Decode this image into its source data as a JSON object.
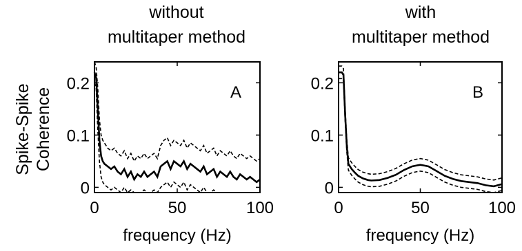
{
  "titles": {
    "a_line1": "without",
    "a_line2": "multitaper method",
    "b_line1": "with",
    "b_line2": "multitaper method"
  },
  "ylabel": {
    "line1": "Spike-Spike",
    "line2": "Coherence"
  },
  "chart_data": [
    {
      "type": "line",
      "panel_label": "A",
      "xlabel": "frequency (Hz)",
      "xlim": [
        0,
        100
      ],
      "ylim": [
        -0.01,
        0.24
      ],
      "xticks": [
        0,
        50,
        100
      ],
      "yticks": [
        0,
        0.1,
        0.2
      ],
      "ytick_labels": [
        "0",
        "0.1",
        "0.2"
      ],
      "xtick_labels": [
        "0",
        "50",
        "100"
      ],
      "series": [
        {
          "style": "solid",
          "x": [
            0,
            1,
            2,
            3,
            4,
            5,
            6,
            8,
            10,
            12,
            14,
            16,
            18,
            20,
            22,
            24,
            26,
            28,
            30,
            32,
            34,
            36,
            38,
            40,
            42,
            44,
            46,
            48,
            50,
            52,
            54,
            56,
            58,
            60,
            62,
            64,
            66,
            68,
            70,
            72,
            74,
            76,
            78,
            80,
            82,
            84,
            86,
            88,
            90,
            92,
            94,
            96,
            98,
            100
          ],
          "y": [
            0.22,
            0.21,
            0.15,
            0.09,
            0.06,
            0.05,
            0.045,
            0.04,
            0.035,
            0.04,
            0.03,
            0.025,
            0.035,
            0.02,
            0.03,
            0.015,
            0.025,
            0.02,
            0.03,
            0.02,
            0.025,
            0.03,
            0.02,
            0.04,
            0.045,
            0.05,
            0.035,
            0.05,
            0.045,
            0.04,
            0.05,
            0.035,
            0.045,
            0.04,
            0.035,
            0.03,
            0.04,
            0.025,
            0.03,
            0.035,
            0.02,
            0.03,
            0.025,
            0.02,
            0.03,
            0.02,
            0.015,
            0.025,
            0.02,
            0.015,
            0.02,
            0.015,
            0.01,
            0.015
          ]
        },
        {
          "style": "dashed",
          "x": [
            0,
            1,
            2,
            3,
            4,
            5,
            6,
            8,
            10,
            12,
            14,
            16,
            18,
            20,
            22,
            24,
            26,
            28,
            30,
            32,
            34,
            36,
            38,
            40,
            42,
            44,
            46,
            48,
            50,
            52,
            54,
            56,
            58,
            60,
            62,
            64,
            66,
            68,
            70,
            72,
            74,
            76,
            78,
            80,
            82,
            84,
            86,
            88,
            90,
            92,
            94,
            96,
            98,
            100
          ],
          "y": [
            0.24,
            0.23,
            0.19,
            0.13,
            0.1,
            0.09,
            0.085,
            0.075,
            0.07,
            0.075,
            0.065,
            0.06,
            0.07,
            0.055,
            0.065,
            0.05,
            0.06,
            0.055,
            0.065,
            0.055,
            0.06,
            0.065,
            0.055,
            0.08,
            0.09,
            0.095,
            0.08,
            0.09,
            0.085,
            0.08,
            0.09,
            0.075,
            0.085,
            0.08,
            0.075,
            0.07,
            0.08,
            0.065,
            0.07,
            0.075,
            0.06,
            0.07,
            0.065,
            0.06,
            0.07,
            0.06,
            0.055,
            0.065,
            0.06,
            0.055,
            0.06,
            0.055,
            0.05,
            0.055
          ]
        },
        {
          "style": "dashed",
          "x": [
            0,
            1,
            2,
            3,
            4,
            5,
            6,
            8,
            10,
            12,
            14,
            16,
            18,
            20,
            22,
            24,
            26,
            28,
            30,
            32,
            34,
            36,
            38,
            40,
            42,
            44,
            46,
            48,
            50,
            52,
            54,
            56,
            58,
            60,
            62,
            64,
            66,
            68,
            70,
            72,
            74,
            76,
            78,
            80,
            82,
            84,
            86,
            88,
            90,
            92,
            94,
            96,
            98,
            100
          ],
          "y": [
            0.2,
            0.19,
            0.11,
            0.05,
            0.02,
            0.01,
            0.005,
            0.0,
            -0.005,
            0.0,
            -0.005,
            -0.01,
            0.0,
            -0.01,
            -0.005,
            -0.01,
            -0.01,
            -0.01,
            -0.005,
            -0.01,
            -0.01,
            -0.005,
            -0.01,
            0.0,
            0.005,
            0.01,
            0.0,
            0.01,
            0.005,
            0.0,
            0.01,
            -0.005,
            0.005,
            0.0,
            -0.005,
            -0.01,
            0.0,
            -0.01,
            -0.01,
            -0.005,
            -0.01,
            -0.01,
            -0.01,
            -0.01,
            -0.01,
            -0.01,
            -0.01,
            -0.01,
            -0.01,
            -0.01,
            -0.01,
            -0.01,
            -0.01,
            -0.01
          ]
        }
      ]
    },
    {
      "type": "line",
      "panel_label": "B",
      "xlabel": "frequency (Hz)",
      "xlim": [
        0,
        100
      ],
      "ylim": [
        -0.01,
        0.24
      ],
      "xticks": [
        0,
        50,
        100
      ],
      "yticks": [
        0,
        0.1,
        0.2
      ],
      "ytick_labels": [
        "0",
        "0.1",
        "0.2"
      ],
      "xtick_labels": [
        "0",
        "50",
        "100"
      ],
      "series": [
        {
          "style": "solid",
          "x": [
            0,
            1,
            2,
            3,
            4,
            5,
            6,
            8,
            10,
            12,
            15,
            18,
            20,
            25,
            30,
            35,
            40,
            45,
            48,
            50,
            52,
            55,
            60,
            65,
            70,
            75,
            80,
            85,
            90,
            95,
            100
          ],
          "y": [
            0.22,
            0.22,
            0.22,
            0.215,
            0.14,
            0.08,
            0.045,
            0.035,
            0.028,
            0.022,
            0.017,
            0.014,
            0.013,
            0.014,
            0.018,
            0.024,
            0.033,
            0.04,
            0.042,
            0.043,
            0.042,
            0.04,
            0.031,
            0.022,
            0.016,
            0.012,
            0.01,
            0.008,
            0.004,
            0.002,
            0.006
          ]
        },
        {
          "style": "dashed",
          "x": [
            0,
            1,
            2,
            3,
            4,
            5,
            6,
            8,
            10,
            12,
            15,
            18,
            20,
            25,
            30,
            35,
            40,
            45,
            48,
            50,
            52,
            55,
            60,
            65,
            70,
            75,
            80,
            85,
            90,
            95,
            100
          ],
          "y": [
            0.232,
            0.232,
            0.232,
            0.227,
            0.152,
            0.092,
            0.057,
            0.047,
            0.04,
            0.034,
            0.029,
            0.026,
            0.025,
            0.026,
            0.03,
            0.036,
            0.045,
            0.052,
            0.054,
            0.055,
            0.054,
            0.052,
            0.043,
            0.034,
            0.028,
            0.024,
            0.022,
            0.02,
            0.016,
            0.014,
            0.018
          ]
        },
        {
          "style": "dashed",
          "x": [
            0,
            1,
            2,
            3,
            4,
            5,
            6,
            8,
            10,
            12,
            15,
            18,
            20,
            25,
            30,
            35,
            40,
            45,
            48,
            50,
            52,
            55,
            60,
            65,
            70,
            75,
            80,
            85,
            90,
            95,
            100
          ],
          "y": [
            0.208,
            0.208,
            0.208,
            0.203,
            0.128,
            0.068,
            0.033,
            0.023,
            0.016,
            0.01,
            0.005,
            0.002,
            0.001,
            0.002,
            0.006,
            0.012,
            0.021,
            0.028,
            0.03,
            0.031,
            0.03,
            0.028,
            0.019,
            0.01,
            0.004,
            0.0,
            -0.002,
            -0.004,
            -0.008,
            -0.01,
            -0.006
          ]
        }
      ]
    }
  ]
}
